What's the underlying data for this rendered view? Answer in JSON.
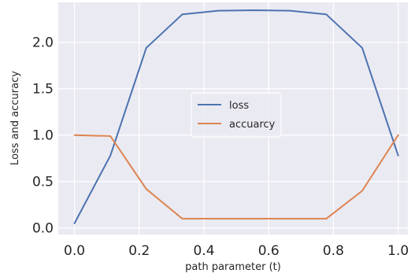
{
  "chart_data": {
    "type": "line",
    "title": "",
    "xlabel": "path parameter (t)",
    "ylabel": "Loss and accuracy",
    "xlim": [
      -0.05,
      1.03
    ],
    "ylim": [
      -0.07,
      2.43
    ],
    "xticks": [
      "0.0",
      "0.2",
      "0.4",
      "0.6",
      "0.8",
      "1.0"
    ],
    "yticks": [
      "0.0",
      "0.5",
      "1.0",
      "1.5",
      "2.0"
    ],
    "grid": true,
    "legend": "center-right",
    "x": [
      0.0,
      0.111,
      0.222,
      0.333,
      0.444,
      0.556,
      0.667,
      0.778,
      0.889,
      1.0
    ],
    "series": [
      {
        "name": "loss",
        "color": "#4c72b0",
        "values": [
          0.05,
          0.78,
          1.94,
          2.3,
          2.34,
          2.345,
          2.34,
          2.3,
          1.94,
          0.78
        ]
      },
      {
        "name": "accuarcy",
        "color": "#dd8452",
        "values": [
          1.0,
          0.99,
          0.42,
          0.1,
          0.1,
          0.1,
          0.1,
          0.1,
          0.4,
          1.0
        ]
      }
    ]
  }
}
